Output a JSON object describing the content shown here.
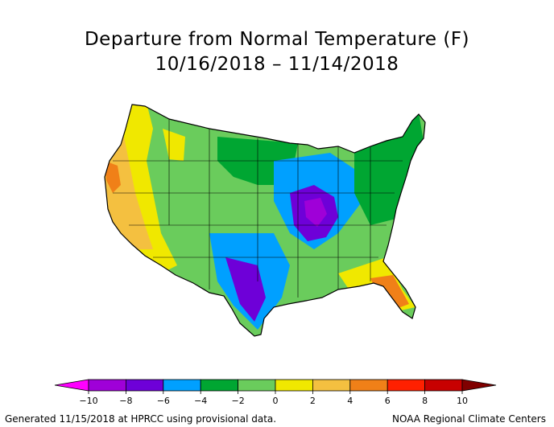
{
  "title": "Departure from Normal Temperature (F)",
  "date_range": "10/16/2018 – 11/14/2018",
  "legend": {
    "ticks": [
      "−10",
      "−8",
      "−6",
      "−4",
      "−2",
      "0",
      "2",
      "4",
      "6",
      "8",
      "10"
    ],
    "colors": [
      "#ff00ff",
      "#9f00d8",
      "#6e00d8",
      "#00a0ff",
      "#00a632",
      "#6acc5c",
      "#f0e800",
      "#f4c040",
      "#f08018",
      "#ff2000",
      "#c80000",
      "#800000"
    ]
  },
  "footer_left": "Generated 11/15/2018 at HPRCC using provisional data.",
  "footer_right": "NOAA Regional Climate Centers"
}
